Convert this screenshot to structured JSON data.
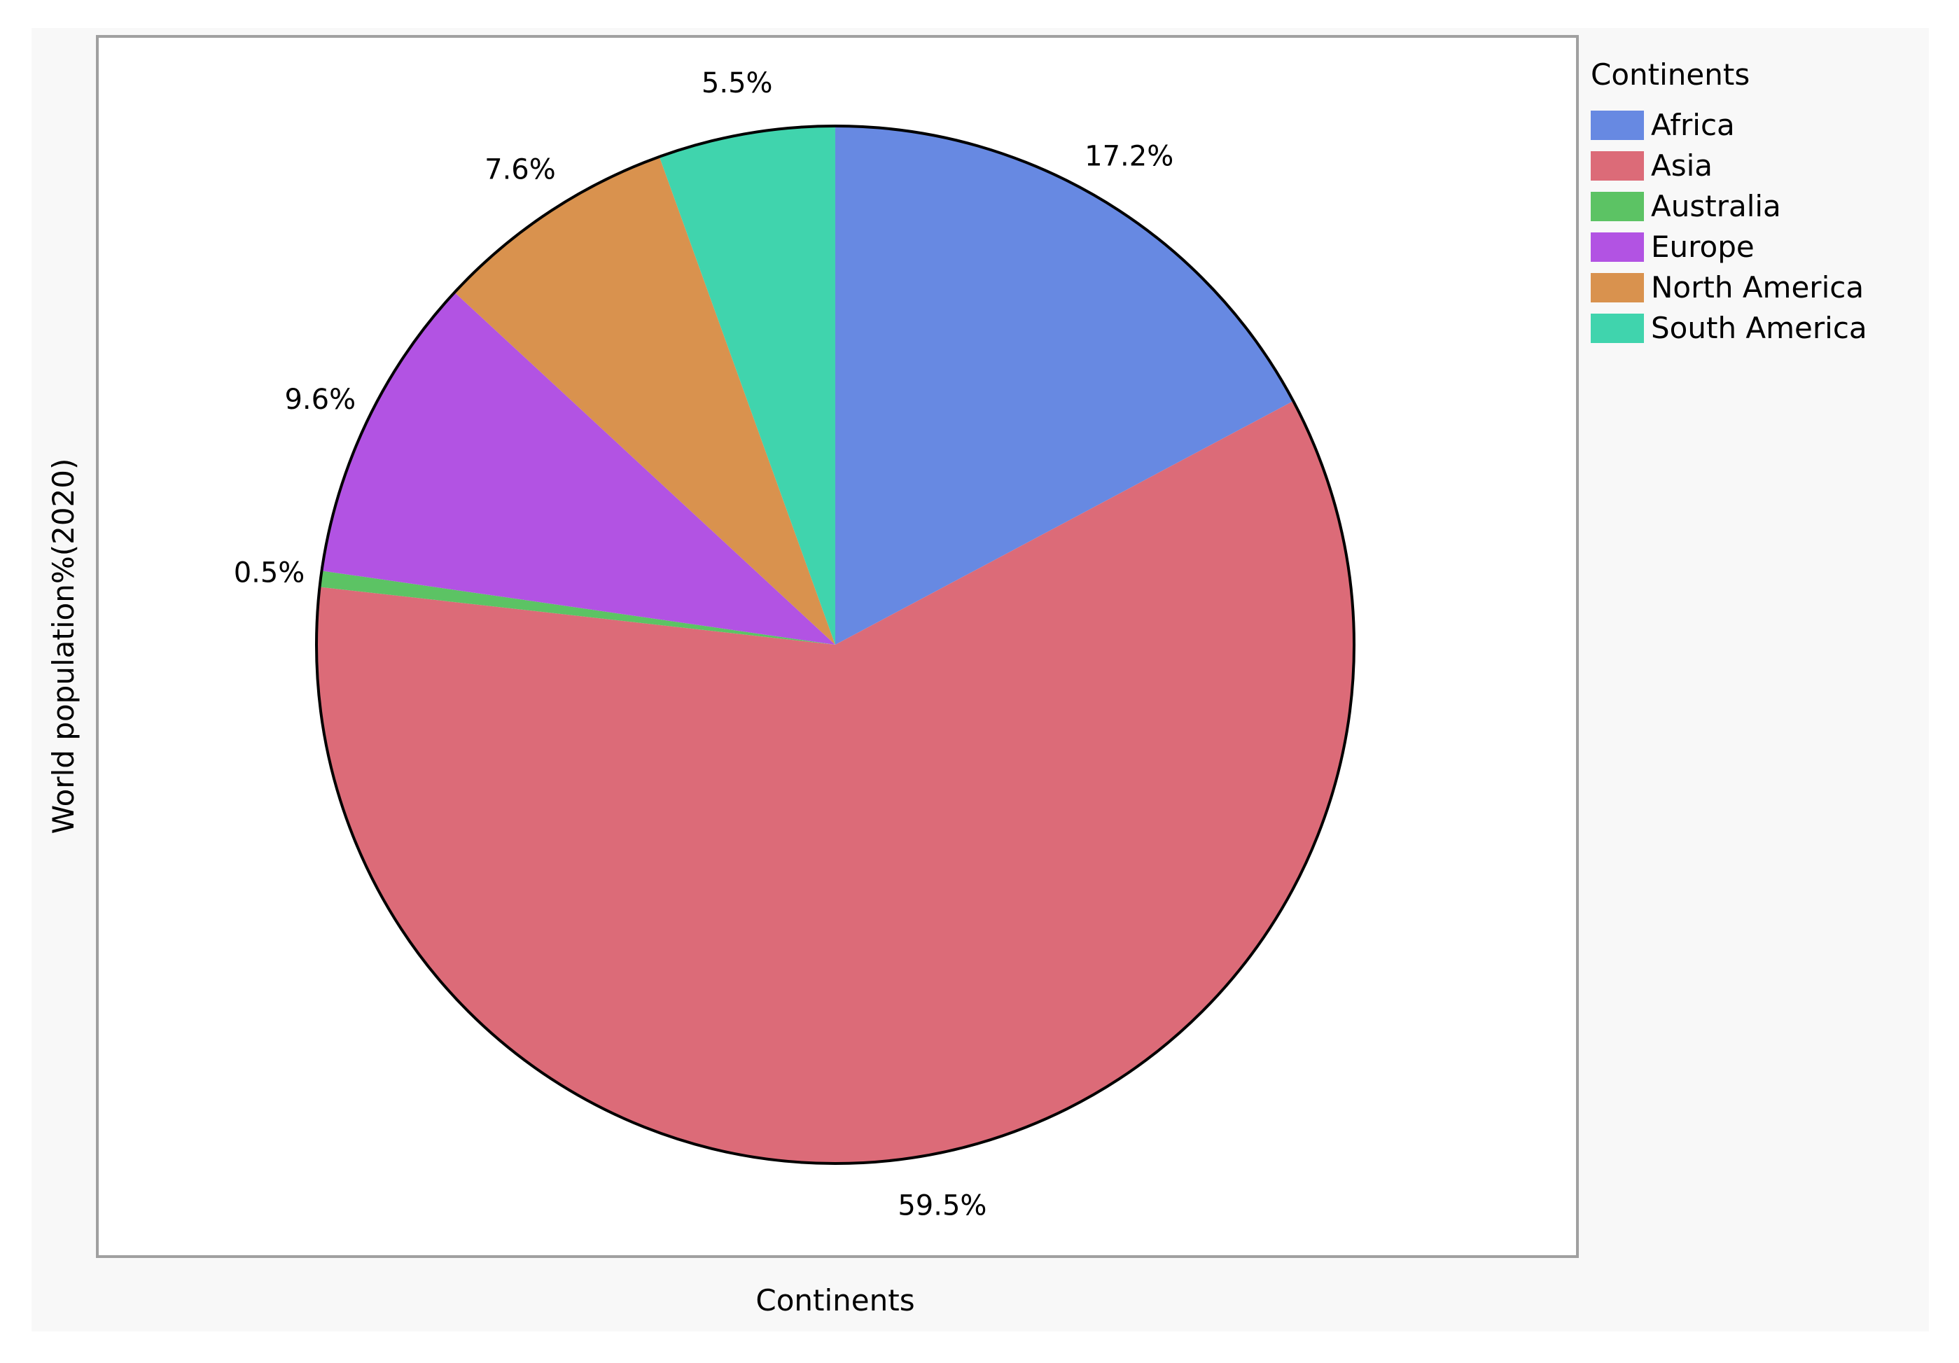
{
  "chart_data": {
    "type": "pie",
    "title": "",
    "xlabel": "Continents",
    "ylabel": "World population%(2020)",
    "legend": {
      "title": "Continents",
      "placement": "right"
    },
    "start_angle": "12 o'clock",
    "direction": "clockwise",
    "slices": [
      {
        "label": "Africa",
        "value": 17.2,
        "display": "17.2%",
        "color": "#6789e2"
      },
      {
        "label": "Asia",
        "value": 59.5,
        "display": "59.5%",
        "color": "#dc6b78"
      },
      {
        "label": "Australia",
        "value": 0.5,
        "display": "0.5%",
        "color": "#5cc364"
      },
      {
        "label": "Europe",
        "value": 9.6,
        "display": "9.6%",
        "color": "#b253e3"
      },
      {
        "label": "North America",
        "value": 7.6,
        "display": "7.6%",
        "color": "#d9924e"
      },
      {
        "label": "South America",
        "value": 5.5,
        "display": "5.5%",
        "color": "#40d4ad"
      }
    ],
    "colors": {
      "background": "#f8f8f8",
      "plot_background": "#ffffff",
      "frame": "#a0a0a0",
      "slice_outline": "#000000"
    }
  }
}
